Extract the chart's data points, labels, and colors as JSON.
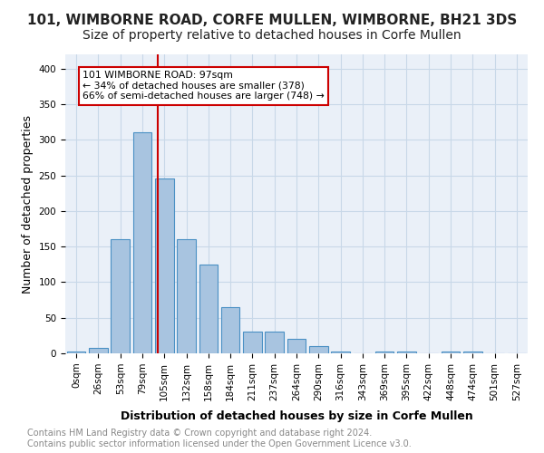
{
  "title": "101, WIMBORNE ROAD, CORFE MULLEN, WIMBORNE, BH21 3DS",
  "subtitle": "Size of property relative to detached houses in Corfe Mullen",
  "xlabel": "Distribution of detached houses by size in Corfe Mullen",
  "ylabel": "Number of detached properties",
  "bar_labels": [
    "0sqm",
    "26sqm",
    "53sqm",
    "79sqm",
    "105sqm",
    "132sqm",
    "158sqm",
    "184sqm",
    "211sqm",
    "237sqm",
    "264sqm",
    "290sqm",
    "316sqm",
    "343sqm",
    "369sqm",
    "395sqm",
    "422sqm",
    "448sqm",
    "474sqm",
    "501sqm",
    "527sqm"
  ],
  "bar_values": [
    2,
    8,
    160,
    310,
    245,
    160,
    125,
    65,
    30,
    30,
    20,
    10,
    2,
    0,
    3,
    3,
    0,
    3,
    2,
    0,
    0
  ],
  "bar_color": "#a8c4e0",
  "bar_edge_color": "#4a90c4",
  "annotation_line1": "101 WIMBORNE ROAD: 97sqm",
  "annotation_line2": "← 34% of detached houses are smaller (378)",
  "annotation_line3": "66% of semi-detached houses are larger (748) →",
  "annotation_box_color": "#ffffff",
  "annotation_box_edge": "#cc0000",
  "vline_color": "#cc0000",
  "ylim": [
    0,
    420
  ],
  "yticks": [
    0,
    50,
    100,
    150,
    200,
    250,
    300,
    350,
    400
  ],
  "background_color": "#ffffff",
  "plot_bg_color": "#eaf0f8",
  "grid_color": "#c8d8e8",
  "footer_text": "Contains HM Land Registry data © Crown copyright and database right 2024.\nContains public sector information licensed under the Open Government Licence v3.0.",
  "title_fontsize": 11,
  "subtitle_fontsize": 10,
  "axis_label_fontsize": 9,
  "tick_fontsize": 7.5,
  "footer_fontsize": 7
}
